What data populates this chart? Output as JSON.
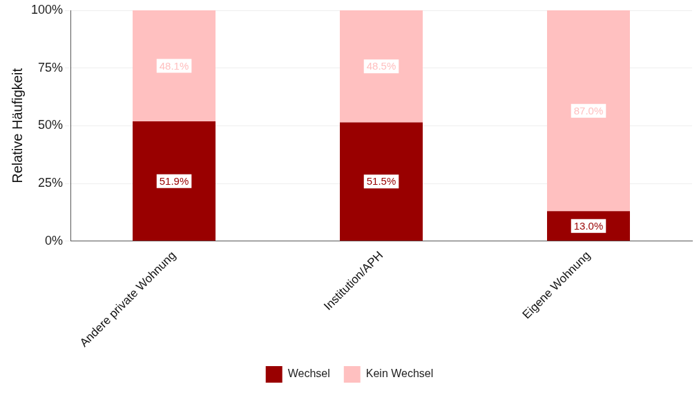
{
  "chart_data": {
    "type": "bar",
    "stacked": true,
    "ylabel": "Relative Häufigkeit",
    "categories": [
      "Andere private Wohnung",
      "Institution/APH",
      "Eigene Wohnung"
    ],
    "series": [
      {
        "name": "Wechsel",
        "color": "#990000",
        "values": [
          51.9,
          51.5,
          13.0
        ],
        "value_labels": [
          "51.9%",
          "51.5%",
          "13.0%"
        ]
      },
      {
        "name": "Kein Wechsel",
        "color": "#ffc0c0",
        "values": [
          48.1,
          48.5,
          87.0
        ],
        "value_labels": [
          "48.1%",
          "48.5%",
          "87.0%"
        ]
      }
    ],
    "ylim": [
      0,
      100
    ],
    "yticks": [
      {
        "value": 0,
        "label": "0%"
      },
      {
        "value": 25,
        "label": "25%"
      },
      {
        "value": 50,
        "label": "50%"
      },
      {
        "value": 75,
        "label": "75%"
      },
      {
        "value": 100,
        "label": "100%"
      }
    ],
    "grid": "y",
    "legend": "bottom"
  }
}
